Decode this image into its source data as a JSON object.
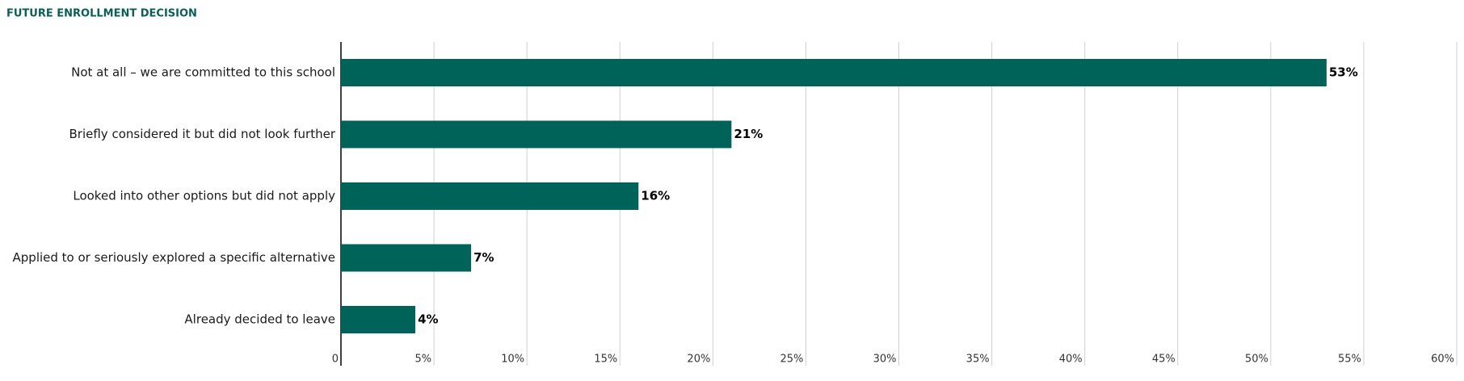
{
  "chart_data": {
    "type": "barh",
    "title": "FUTURE ENROLLMENT DECISION",
    "categories": [
      "Not at all – we are committed to this school",
      "Briefly considered it but did not look further",
      "Looked into other options but did not apply",
      "Applied to or seriously explored a specific alternative",
      "Already decided to leave"
    ],
    "values": [
      53,
      21,
      16,
      7,
      4
    ],
    "value_labels": [
      "53%",
      "21%",
      "16%",
      "7%",
      "4%"
    ],
    "color": "#00635a",
    "xlim": [
      0,
      60
    ],
    "xticks": [
      0,
      {
        "value": 5,
        "label": "5%"
      },
      {
        "value": 10,
        "label": "10%"
      },
      {
        "value": 15,
        "label": "15%"
      },
      {
        "value": 20,
        "label": "20%"
      },
      {
        "value": 25,
        "label": "25%"
      },
      {
        "value": 30,
        "label": "30%"
      },
      {
        "value": 35,
        "label": "35%"
      },
      {
        "value": 40,
        "label": "40%"
      },
      {
        "value": 45,
        "label": "45%"
      },
      {
        "value": 50,
        "label": "50%"
      },
      {
        "value": 55,
        "label": "55%"
      },
      {
        "value": 60,
        "label": "60%"
      }
    ],
    "grid": true
  }
}
